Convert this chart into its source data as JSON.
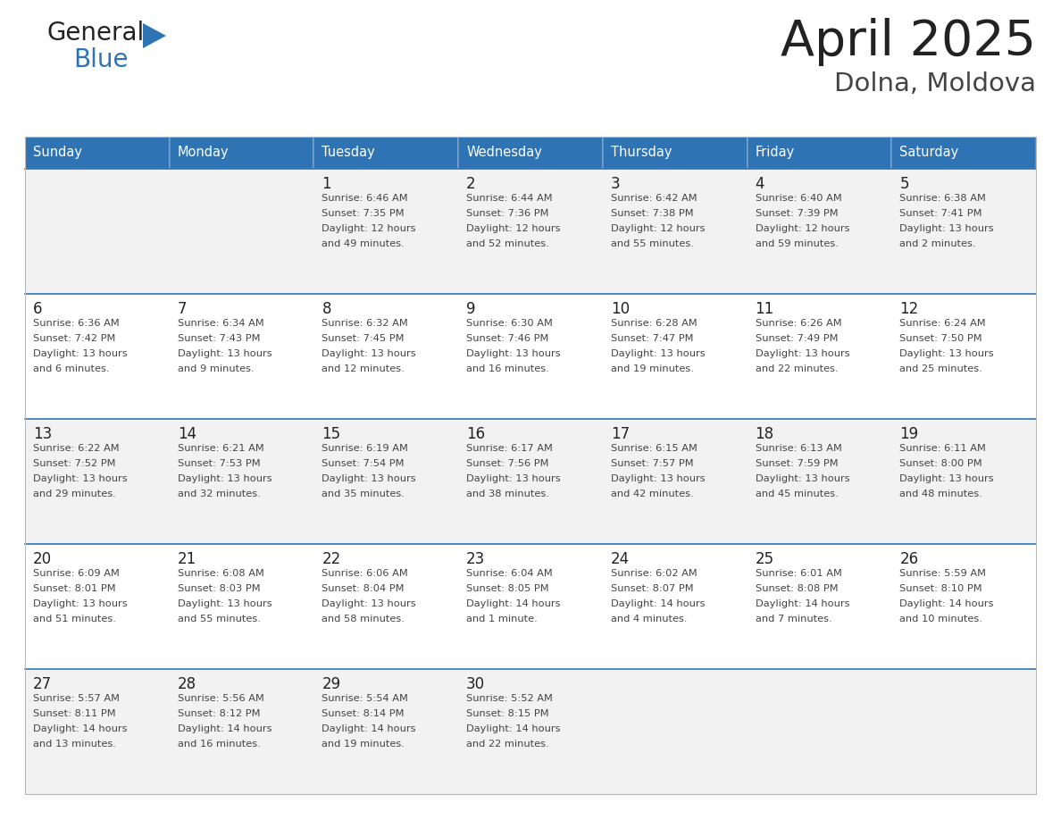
{
  "title": "April 2025",
  "subtitle": "Dolna, Moldova",
  "header_bg": "#2E74B5",
  "header_text_color": "#FFFFFF",
  "day_names": [
    "Sunday",
    "Monday",
    "Tuesday",
    "Wednesday",
    "Thursday",
    "Friday",
    "Saturday"
  ],
  "row_bg_odd": "#F2F2F2",
  "row_bg_even": "#FFFFFF",
  "cell_text_color": "#333333",
  "day_number_color": "#222222",
  "border_color": "#2E74B5",
  "cell_border_color": "#CCCCCC",
  "logo_color_general": "#222222",
  "logo_color_blue": "#2E74B5",
  "calendar": [
    [
      {
        "day": null
      },
      {
        "day": null
      },
      {
        "day": 1,
        "sunrise": "6:46 AM",
        "sunset": "7:35 PM",
        "daylight": "12 hours and 49 minutes."
      },
      {
        "day": 2,
        "sunrise": "6:44 AM",
        "sunset": "7:36 PM",
        "daylight": "12 hours and 52 minutes."
      },
      {
        "day": 3,
        "sunrise": "6:42 AM",
        "sunset": "7:38 PM",
        "daylight": "12 hours and 55 minutes."
      },
      {
        "day": 4,
        "sunrise": "6:40 AM",
        "sunset": "7:39 PM",
        "daylight": "12 hours and 59 minutes."
      },
      {
        "day": 5,
        "sunrise": "6:38 AM",
        "sunset": "7:41 PM",
        "daylight": "13 hours and 2 minutes."
      }
    ],
    [
      {
        "day": 6,
        "sunrise": "6:36 AM",
        "sunset": "7:42 PM",
        "daylight": "13 hours and 6 minutes."
      },
      {
        "day": 7,
        "sunrise": "6:34 AM",
        "sunset": "7:43 PM",
        "daylight": "13 hours and 9 minutes."
      },
      {
        "day": 8,
        "sunrise": "6:32 AM",
        "sunset": "7:45 PM",
        "daylight": "13 hours and 12 minutes."
      },
      {
        "day": 9,
        "sunrise": "6:30 AM",
        "sunset": "7:46 PM",
        "daylight": "13 hours and 16 minutes."
      },
      {
        "day": 10,
        "sunrise": "6:28 AM",
        "sunset": "7:47 PM",
        "daylight": "13 hours and 19 minutes."
      },
      {
        "day": 11,
        "sunrise": "6:26 AM",
        "sunset": "7:49 PM",
        "daylight": "13 hours and 22 minutes."
      },
      {
        "day": 12,
        "sunrise": "6:24 AM",
        "sunset": "7:50 PM",
        "daylight": "13 hours and 25 minutes."
      }
    ],
    [
      {
        "day": 13,
        "sunrise": "6:22 AM",
        "sunset": "7:52 PM",
        "daylight": "13 hours and 29 minutes."
      },
      {
        "day": 14,
        "sunrise": "6:21 AM",
        "sunset": "7:53 PM",
        "daylight": "13 hours and 32 minutes."
      },
      {
        "day": 15,
        "sunrise": "6:19 AM",
        "sunset": "7:54 PM",
        "daylight": "13 hours and 35 minutes."
      },
      {
        "day": 16,
        "sunrise": "6:17 AM",
        "sunset": "7:56 PM",
        "daylight": "13 hours and 38 minutes."
      },
      {
        "day": 17,
        "sunrise": "6:15 AM",
        "sunset": "7:57 PM",
        "daylight": "13 hours and 42 minutes."
      },
      {
        "day": 18,
        "sunrise": "6:13 AM",
        "sunset": "7:59 PM",
        "daylight": "13 hours and 45 minutes."
      },
      {
        "day": 19,
        "sunrise": "6:11 AM",
        "sunset": "8:00 PM",
        "daylight": "13 hours and 48 minutes."
      }
    ],
    [
      {
        "day": 20,
        "sunrise": "6:09 AM",
        "sunset": "8:01 PM",
        "daylight": "13 hours and 51 minutes."
      },
      {
        "day": 21,
        "sunrise": "6:08 AM",
        "sunset": "8:03 PM",
        "daylight": "13 hours and 55 minutes."
      },
      {
        "day": 22,
        "sunrise": "6:06 AM",
        "sunset": "8:04 PM",
        "daylight": "13 hours and 58 minutes."
      },
      {
        "day": 23,
        "sunrise": "6:04 AM",
        "sunset": "8:05 PM",
        "daylight": "14 hours and 1 minute."
      },
      {
        "day": 24,
        "sunrise": "6:02 AM",
        "sunset": "8:07 PM",
        "daylight": "14 hours and 4 minutes."
      },
      {
        "day": 25,
        "sunrise": "6:01 AM",
        "sunset": "8:08 PM",
        "daylight": "14 hours and 7 minutes."
      },
      {
        "day": 26,
        "sunrise": "5:59 AM",
        "sunset": "8:10 PM",
        "daylight": "14 hours and 10 minutes."
      }
    ],
    [
      {
        "day": 27,
        "sunrise": "5:57 AM",
        "sunset": "8:11 PM",
        "daylight": "14 hours and 13 minutes."
      },
      {
        "day": 28,
        "sunrise": "5:56 AM",
        "sunset": "8:12 PM",
        "daylight": "14 hours and 16 minutes."
      },
      {
        "day": 29,
        "sunrise": "5:54 AM",
        "sunset": "8:14 PM",
        "daylight": "14 hours and 19 minutes."
      },
      {
        "day": 30,
        "sunrise": "5:52 AM",
        "sunset": "8:15 PM",
        "daylight": "14 hours and 22 minutes."
      },
      {
        "day": null
      },
      {
        "day": null
      },
      {
        "day": null
      }
    ]
  ]
}
